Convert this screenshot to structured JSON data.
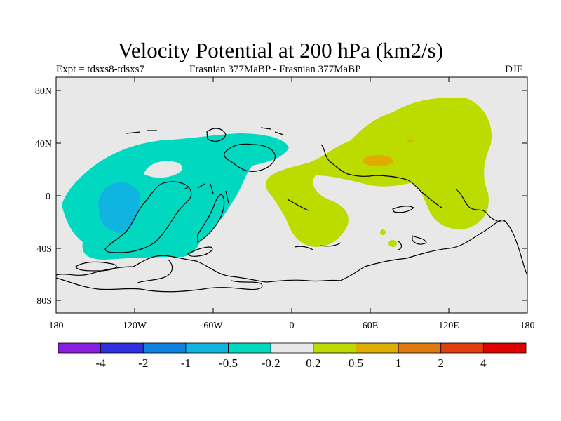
{
  "title": "Velocity Potential at 200 hPa (km2/s)",
  "subtitle_left": "Expt = tdsxs8-tdsxs7",
  "subtitle_center": "Frasnian 377MaBP - Frasnian 377MaBP",
  "subtitle_right": "DJF",
  "y_ticks": [
    "80N",
    "40N",
    "0",
    "40S",
    "80S"
  ],
  "x_ticks": [
    "180",
    "120W",
    "60W",
    "0",
    "60E",
    "120E",
    "180"
  ],
  "colorbar": {
    "labels": [
      "-4",
      "-2",
      "-1",
      "-0.5",
      "-0.2",
      "0.2",
      "0.5",
      "1",
      "2",
      "4"
    ],
    "colors": [
      "#8a1ee0",
      "#3030e0",
      "#1080e0",
      "#10b4e0",
      "#00d8c0",
      "#e8e8e8",
      "#bcdc00",
      "#e0ac00",
      "#e07a10",
      "#e04010",
      "#e00000"
    ]
  },
  "colors": {
    "land_background": "#e8e8e8",
    "negative_fill": "#00d8c0",
    "negative_core": "#10b4e0",
    "positive_fill": "#bcdc00",
    "positive_core": "#e0ac00"
  }
}
